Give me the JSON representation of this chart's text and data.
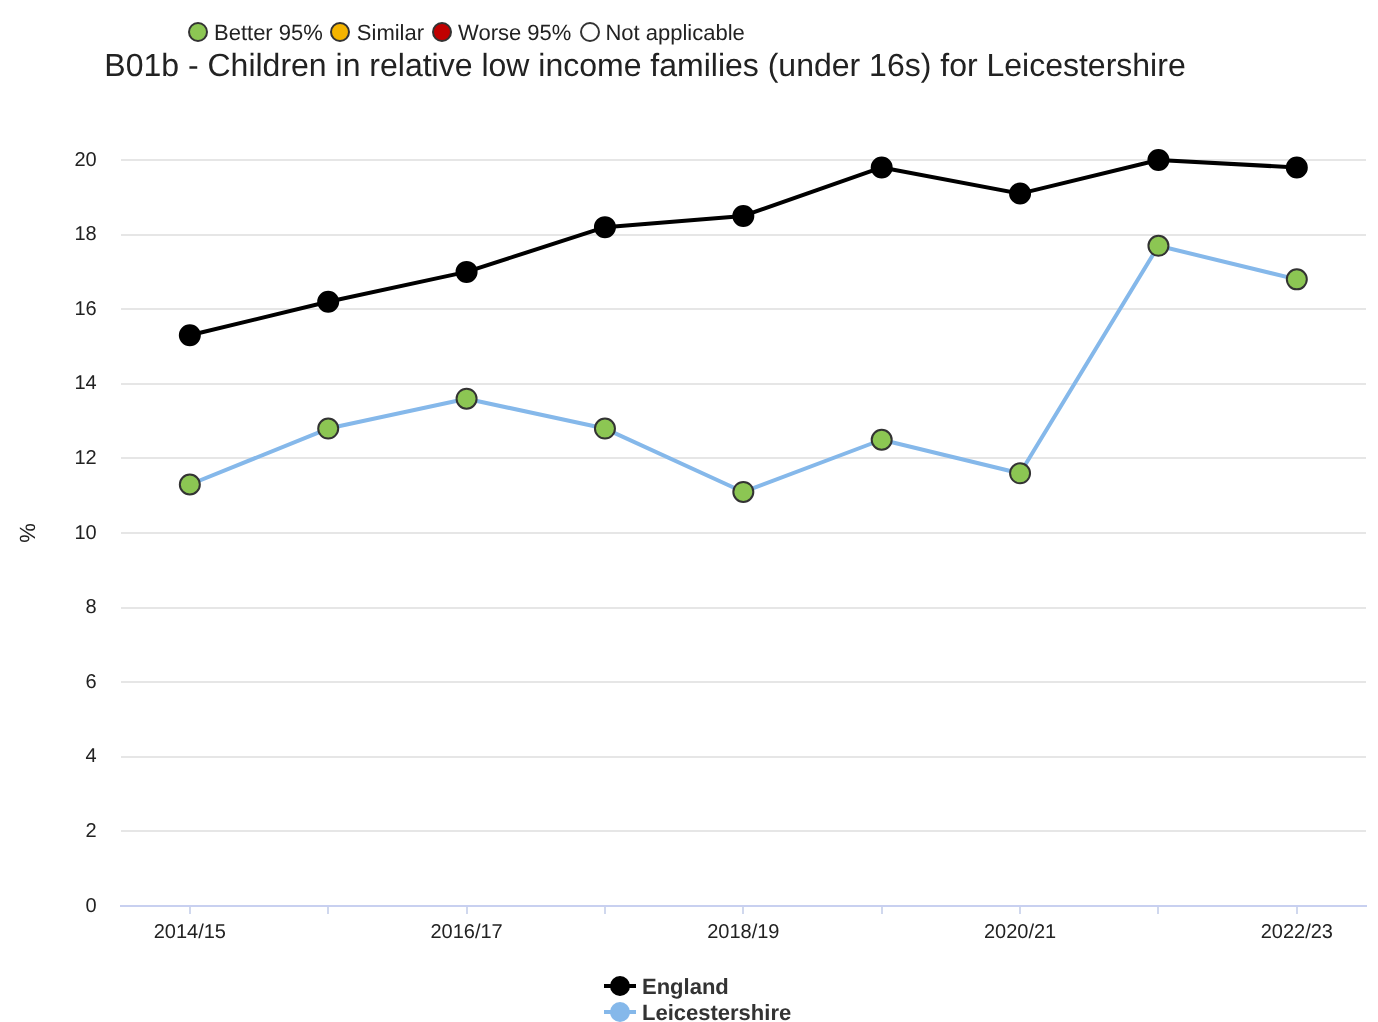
{
  "chart_data": {
    "type": "line",
    "title": "B01b - Children in relative low income families (under 16s) for Leicestershire",
    "ylabel": "%",
    "categories": [
      "2014/15",
      null,
      "2016/17",
      null,
      "2018/19",
      null,
      "2020/21",
      null,
      "2022/23"
    ],
    "series": [
      {
        "name": "England",
        "color": "#000000",
        "values": [
          15.3,
          16.2,
          17.0,
          18.2,
          18.5,
          19.8,
          19.1,
          20.0,
          19.8
        ]
      },
      {
        "name": "Leicestershire",
        "color": "#85b8ea",
        "colors": [
          "#8cc653",
          "#8cc653",
          "#8cc653",
          "#8cc653",
          "#8cc653",
          "#8cc653",
          "#8cc653",
          "#8cc653",
          "#8cc653"
        ],
        "values": [
          11.3,
          12.8,
          13.6,
          12.8,
          11.1,
          12.5,
          11.6,
          17.7,
          16.8
        ]
      }
    ],
    "annotations": [
      "Better 95%",
      "Similar",
      "Worse 95%",
      "Not applicable"
    ],
    "ylim": [
      0,
      20
    ],
    "yticks": [
      0,
      2,
      4,
      6,
      8,
      10,
      12,
      14,
      16,
      18,
      20
    ],
    "grid": "y",
    "legend": "bottom",
    "marker": "circle",
    "line_style": "solid"
  }
}
